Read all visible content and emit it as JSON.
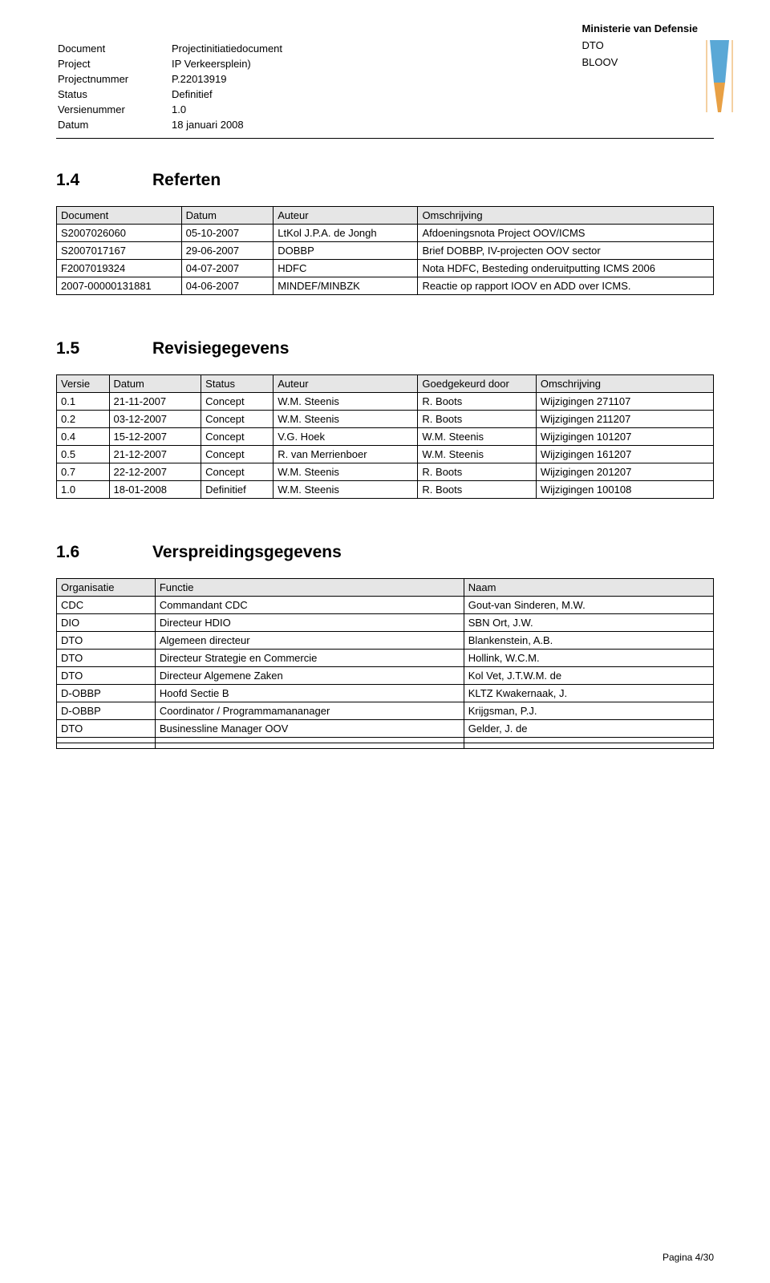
{
  "header": {
    "ministry": "Ministerie van Defensie",
    "line2": "DTO",
    "line3": "BLOOV"
  },
  "meta": {
    "rows": [
      {
        "k": "Document",
        "v": "Projectinitiatiedocument"
      },
      {
        "k": "Project",
        "v": "IP Verkeersplein)"
      },
      {
        "k": "Projectnummer",
        "v": "P.22013919"
      },
      {
        "k": "Status",
        "v": "Definitief"
      },
      {
        "k": "Versienummer",
        "v": "1.0"
      },
      {
        "k": "Datum",
        "v": "18 januari 2008"
      }
    ]
  },
  "sections": {
    "s14": {
      "num": "1.4",
      "title": "Referten"
    },
    "s15": {
      "num": "1.5",
      "title": "Revisiegegevens"
    },
    "s16": {
      "num": "1.6",
      "title": "Verspreidingsgegevens"
    }
  },
  "referten": {
    "headers": [
      "Document",
      "Datum",
      "Auteur",
      "Omschrijving"
    ],
    "rows": [
      [
        "S2007026060",
        "05-10-2007",
        "LtKol J.P.A. de Jongh",
        "Afdoeningsnota Project OOV/ICMS"
      ],
      [
        "S2007017167",
        "29-06-2007",
        "DOBBP",
        "Brief DOBBP, IV-projecten OOV sector"
      ],
      [
        "F2007019324",
        "04-07-2007",
        "HDFC",
        "Nota HDFC, Besteding onderuitputting ICMS 2006"
      ],
      [
        "2007-00000131881",
        "04-06-2007",
        "MINDEF/MINBZK",
        "Reactie op rapport IOOV en ADD over ICMS."
      ]
    ],
    "col_widths": [
      "19%",
      "14%",
      "22%",
      "45%"
    ]
  },
  "revisie": {
    "headers": [
      "Versie",
      "Datum",
      "Status",
      "Auteur",
      "Goedgekeurd door",
      "Omschrijving"
    ],
    "rows": [
      [
        "0.1",
        "21-11-2007",
        "Concept",
        "W.M. Steenis",
        "R. Boots",
        "Wijzigingen 271107"
      ],
      [
        "0.2",
        "03-12-2007",
        "Concept",
        "W.M. Steenis",
        "R. Boots",
        "Wijzigingen 211207"
      ],
      [
        "0.4",
        "15-12-2007",
        "Concept",
        "V.G. Hoek",
        "W.M. Steenis",
        "Wijzigingen 101207"
      ],
      [
        "0.5",
        "21-12-2007",
        "Concept",
        "R. van Merrienboer",
        "W.M. Steenis",
        "Wijzigingen 161207"
      ],
      [
        "0.7",
        "22-12-2007",
        "Concept",
        "W.M. Steenis",
        "R. Boots",
        "Wijzigingen 201207"
      ],
      [
        "1.0",
        "18-01-2008",
        "Definitief",
        "W.M. Steenis",
        "R. Boots",
        "Wijzigingen 100108"
      ]
    ],
    "col_widths": [
      "8%",
      "14%",
      "11%",
      "22%",
      "18%",
      "27%"
    ]
  },
  "verspreiding": {
    "headers": [
      "Organisatie",
      "Functie",
      "Naam"
    ],
    "rows": [
      [
        "CDC",
        "Commandant CDC",
        "Gout-van Sinderen, M.W."
      ],
      [
        "DIO",
        "Directeur HDIO",
        "SBN Ort, J.W."
      ],
      [
        "DTO",
        "Algemeen directeur",
        "Blankenstein, A.B."
      ],
      [
        "DTO",
        "Directeur Strategie en Commercie",
        "Hollink, W.C.M."
      ],
      [
        "DTO",
        "Directeur Algemene Zaken",
        "Kol Vet, J.T.W.M. de"
      ],
      [
        "D-OBBP",
        "Hoofd Sectie B",
        "KLTZ Kwakernaak, J."
      ],
      [
        "D-OBBP",
        "Coordinator / Programmamananager",
        "Krijgsman, P.J."
      ],
      [
        "DTO",
        "Businessline Manager OOV",
        "Gelder, J. de"
      ],
      [
        "",
        "",
        ""
      ],
      [
        "",
        "",
        ""
      ]
    ],
    "col_widths": [
      "15%",
      "47%",
      "38%"
    ]
  },
  "footer": {
    "text": "Pagina 4/30"
  },
  "colors": {
    "header_bg": "#e6e6e6",
    "border": "#000000",
    "text": "#000000",
    "page_bg": "#ffffff",
    "logo_blue": "#5aa8d6",
    "logo_orange": "#e8a044"
  }
}
